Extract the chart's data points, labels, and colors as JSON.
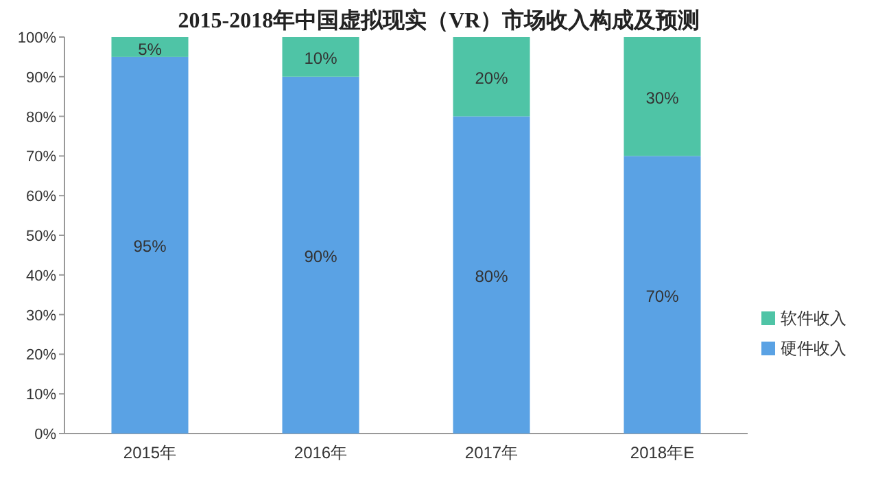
{
  "chart_data": {
    "type": "bar",
    "title": "2015-2018年中国虚拟现实（VR）市场收入构成及预测",
    "stacked": true,
    "legend": "right",
    "categories": [
      "2015年",
      "2016年",
      "2017年",
      "2018年E"
    ],
    "series": [
      {
        "name": "硬件收入",
        "color": "#5aa2e4",
        "values": [
          95,
          90,
          80,
          70
        ],
        "value_labels": [
          "95%",
          "90%",
          "80%",
          "70%"
        ]
      },
      {
        "name": "软件收入",
        "color": "#4fc4a6",
        "values": [
          5,
          10,
          20,
          30
        ],
        "value_labels": [
          "5%",
          "10%",
          "20%",
          "30%"
        ]
      }
    ],
    "ylim": [
      0,
      100
    ],
    "yticks": [
      {
        "value": 0,
        "label": "0%"
      },
      {
        "value": 10,
        "label": "10%"
      },
      {
        "value": 20,
        "label": "20%"
      },
      {
        "value": 30,
        "label": "30%"
      },
      {
        "value": 40,
        "label": "40%"
      },
      {
        "value": 50,
        "label": "50%"
      },
      {
        "value": 60,
        "label": "60%"
      },
      {
        "value": 70,
        "label": "70%"
      },
      {
        "value": 80,
        "label": "80%"
      },
      {
        "value": 90,
        "label": "90%"
      },
      {
        "value": 100,
        "label": "100%"
      }
    ]
  }
}
